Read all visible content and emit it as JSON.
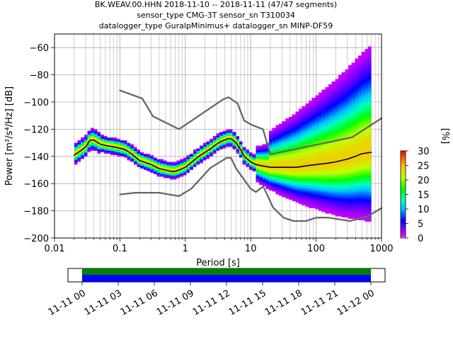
{
  "title_lines": [
    "BK.WEAV.00.HHN   2018-11-10 -- 2018-11-11  (47/47 segments)",
    "sensor_type CMG-3T sensor_sn T310034",
    "datalogger_type GuralpMinimus+ datalogger_sn MINP-DF59"
  ],
  "chart_data": [
    {
      "type": "heatmap",
      "title": "BK.WEAV.00.HHN   2018-11-10 -- 2018-11-11  (47/47 segments)",
      "xlabel": "Period [s]",
      "ylabel": "Power [m²/s⁴/Hz] [dB]",
      "xscale": "log",
      "xlim": [
        0.01,
        1000
      ],
      "ylim": [
        -200,
        -50
      ],
      "xticks": [
        0.01,
        0.1,
        1,
        10,
        100,
        1000
      ],
      "xtick_labels": [
        "0.01",
        "0.1",
        "1",
        "10",
        "100",
        "1000"
      ],
      "yticks": [
        -200,
        -180,
        -160,
        -140,
        -120,
        -100,
        -80,
        -60
      ],
      "ytick_labels": [
        "−200",
        "−180",
        "−160",
        "−140",
        "−120",
        "−100",
        "−80",
        "−60"
      ],
      "grid": true,
      "colorbar": {
        "label": "[%]",
        "range": [
          0,
          30
        ],
        "ticks": [
          0,
          5,
          10,
          15,
          20,
          25,
          30
        ],
        "tick_labels": [
          "0",
          "5",
          "10",
          "15",
          "20",
          "25",
          "30"
        ],
        "stops": [
          {
            "value": 0,
            "color": "#ffffff"
          },
          {
            "value": 0.5,
            "color": "#ff00ff"
          },
          {
            "value": 3,
            "color": "#7f00ff"
          },
          {
            "value": 6,
            "color": "#0000ff"
          },
          {
            "value": 10,
            "color": "#00bfff"
          },
          {
            "value": 13,
            "color": "#00ffbf"
          },
          {
            "value": 17,
            "color": "#00ff00"
          },
          {
            "value": 21,
            "color": "#bfff00"
          },
          {
            "value": 25,
            "color": "#ffbf00"
          },
          {
            "value": 30,
            "color": "#ff0000"
          }
        ]
      },
      "series": [
        {
          "role": "mean",
          "color": "#000000",
          "x": [
            0.02,
            0.025,
            0.03,
            0.035,
            0.04,
            0.05,
            0.06,
            0.08,
            0.1,
            0.12,
            0.15,
            0.2,
            0.3,
            0.4,
            0.5,
            0.6,
            0.7,
            0.8,
            1.0,
            1.2,
            1.5,
            2,
            2.5,
            3,
            3.5,
            4,
            4.5,
            5,
            6,
            7,
            8,
            10,
            12,
            15,
            20,
            30,
            50,
            70,
            100,
            150,
            200,
            300,
            400,
            500,
            700
          ],
          "y": [
            -139,
            -136,
            -133,
            -128,
            -128,
            -131,
            -132,
            -133,
            -134,
            -135,
            -138,
            -143,
            -146,
            -149,
            -150,
            -151,
            -151,
            -150,
            -148,
            -145,
            -141,
            -137,
            -134,
            -131,
            -129,
            -128,
            -127,
            -127,
            -130,
            -135,
            -140,
            -144,
            -146,
            -147,
            -148,
            -148,
            -148,
            -147,
            -146,
            -145,
            -144,
            -142,
            -140,
            -138,
            -137
          ]
        },
        {
          "role": "noise-model-high",
          "color": "#666666",
          "x": [
            0.1,
            0.22,
            0.32,
            0.8,
            3.8,
            4.6,
            6.3,
            7.9,
            10,
            15.4,
            20,
            354.8,
            1000
          ],
          "y": [
            -91.5,
            -97.4,
            -110.5,
            -120,
            -98,
            -96.5,
            -101,
            -113.5,
            -116.5,
            -120,
            -138.5,
            -126,
            -112
          ]
        },
        {
          "role": "noise-model-low",
          "color": "#666666",
          "x": [
            0.1,
            0.17,
            0.4,
            0.8,
            1.24,
            2.4,
            4.3,
            5.0,
            6.0,
            10,
            12,
            15.6,
            21.9,
            31.6,
            45,
            70,
            101,
            154,
            328,
            600,
            1000
          ],
          "y": [
            -168,
            -166.7,
            -166.7,
            -169.2,
            -163.7,
            -148.6,
            -141.1,
            -141.1,
            -149,
            -163.8,
            -166.2,
            -162.1,
            -177.5,
            -185,
            -187.5,
            -187.5,
            -185,
            -185,
            -187.5,
            -184.4,
            -178
          ]
        }
      ]
    },
    {
      "type": "timeline",
      "xlim": [
        "2018-11-11 00",
        "2018-11-12 00"
      ],
      "xtick_labels": [
        "11-11 00",
        "11-11 03",
        "11-11 06",
        "11-11 09",
        "11-11 12",
        "11-11 15",
        "11-11 18",
        "11-11 21",
        "11-12 00"
      ],
      "bars": [
        {
          "label": "",
          "start": "2018-11-11 00",
          "end": "2018-11-12 00",
          "color": "#008000"
        },
        {
          "label": "",
          "start": "2018-11-11 00",
          "end": "2018-11-12 00",
          "color": "#0000ff"
        }
      ]
    }
  ]
}
